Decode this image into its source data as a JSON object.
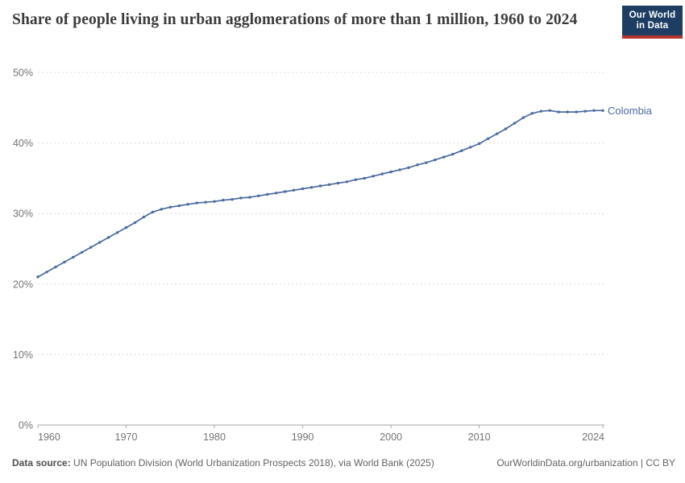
{
  "header": {
    "title": "Share of people living in urban agglomerations of more than 1 million, 1960 to 2024",
    "logo": {
      "line1": "Our World",
      "line2": "in Data"
    }
  },
  "chart_data": {
    "type": "line",
    "title": "Share of people living in urban agglomerations of more than 1 million, 1960 to 2024",
    "xlabel": "",
    "ylabel": "",
    "xlim": [
      1960,
      2024
    ],
    "ylim": [
      0,
      50
    ],
    "xticks": [
      1960,
      1970,
      1980,
      1990,
      2000,
      2010,
      2024
    ],
    "yticks": [
      0,
      10,
      20,
      30,
      40,
      50
    ],
    "ytick_format": "percent",
    "grid": "horizontal-dashed",
    "legend_position": "end-of-line-label",
    "series": [
      {
        "name": "Colombia",
        "color": "#4c6ba0",
        "x": [
          1960,
          1961,
          1962,
          1963,
          1964,
          1965,
          1966,
          1967,
          1968,
          1969,
          1970,
          1971,
          1972,
          1973,
          1974,
          1975,
          1976,
          1977,
          1978,
          1979,
          1980,
          1981,
          1982,
          1983,
          1984,
          1985,
          1986,
          1987,
          1988,
          1989,
          1990,
          1991,
          1992,
          1993,
          1994,
          1995,
          1996,
          1997,
          1998,
          1999,
          2000,
          2001,
          2002,
          2003,
          2004,
          2005,
          2006,
          2007,
          2008,
          2009,
          2010,
          2011,
          2012,
          2013,
          2014,
          2015,
          2016,
          2017,
          2018,
          2019,
          2020,
          2021,
          2022,
          2023,
          2024
        ],
        "values": [
          21.0,
          21.7,
          22.4,
          23.1,
          23.8,
          24.5,
          25.2,
          25.9,
          26.6,
          27.3,
          28.0,
          28.7,
          29.5,
          30.2,
          30.6,
          30.9,
          31.1,
          31.3,
          31.5,
          31.6,
          31.7,
          31.9,
          32.0,
          32.2,
          32.3,
          32.5,
          32.7,
          32.9,
          33.1,
          33.3,
          33.5,
          33.7,
          33.9,
          34.1,
          34.3,
          34.5,
          34.8,
          35.0,
          35.3,
          35.6,
          35.9,
          36.2,
          36.5,
          36.9,
          37.2,
          37.6,
          38.0,
          38.4,
          38.9,
          39.4,
          39.9,
          40.6,
          41.3,
          42.0,
          42.8,
          43.6,
          44.2,
          44.5,
          44.6,
          44.4,
          44.4,
          44.4,
          44.5,
          44.6,
          44.6
        ]
      }
    ]
  },
  "footer": {
    "datasource_label": "Data source:",
    "datasource_text": "UN Population Division (World Urbanization Prospects 2018), via World Bank (2025)",
    "attribution": "OurWorldinData.org/urbanization | CC BY"
  },
  "colors": {
    "line": "#4c6ba0",
    "logo_navy": "#1d3d63",
    "logo_red": "#b5342c",
    "gridline": "#dcdcdc",
    "axis": "#a5a5a5",
    "tick_label": "#737373",
    "title_text": "#3b3b3b",
    "footer_text": "#636363"
  }
}
